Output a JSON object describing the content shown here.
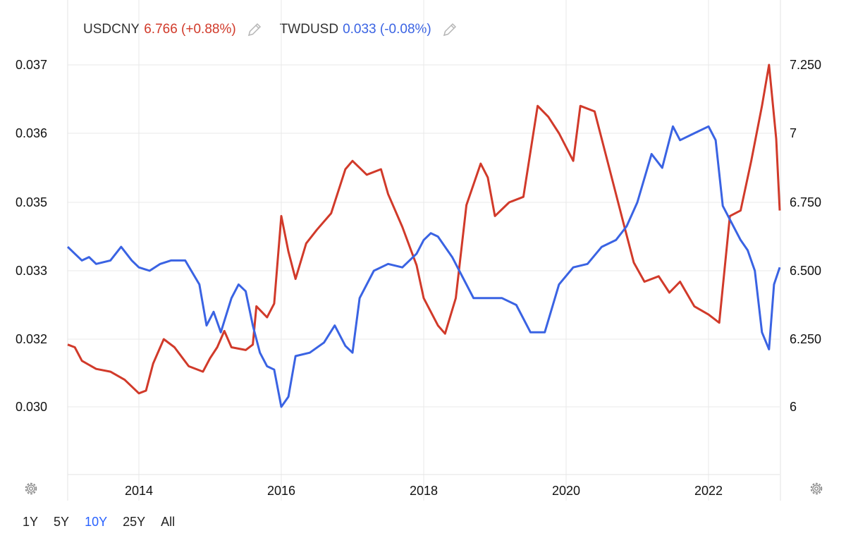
{
  "legend": [
    {
      "symbol": "USDCNY",
      "value": "6.766 (+0.88%)",
      "color": "#d13a2a"
    },
    {
      "symbol": "TWDUSD",
      "value": "0.033 (-0.08%)",
      "color": "#3a63e3"
    }
  ],
  "range_buttons": [
    {
      "label": "1Y",
      "active": false
    },
    {
      "label": "5Y",
      "active": false
    },
    {
      "label": "10Y",
      "active": true
    },
    {
      "label": "25Y",
      "active": false
    },
    {
      "label": "All",
      "active": false
    }
  ],
  "icons": {
    "edit": "pencil-icon",
    "settings": "gear-icon"
  },
  "chart_data": {
    "type": "line",
    "x_range": [
      2013.0,
      2023.0
    ],
    "x_ticks": [
      "2014",
      "2016",
      "2018",
      "2020",
      "2022"
    ],
    "left_axis": {
      "ticks": [
        "0.030",
        "0.032",
        "0.033",
        "0.035",
        "0.036",
        "0.037"
      ],
      "tick_values": [
        0.03,
        0.032,
        0.033,
        0.035,
        0.036,
        0.037
      ]
    },
    "right_axis": {
      "ticks": [
        "6",
        "6.250",
        "6.500",
        "6.750",
        "7",
        "7.250"
      ],
      "tick_values": [
        6.0,
        6.25,
        6.5,
        6.75,
        7.0,
        7.25
      ]
    },
    "grid": true,
    "series": [
      {
        "name": "USDCNY",
        "axis": "right",
        "color": "#d13a2a",
        "points": [
          [
            2013.0,
            6.23
          ],
          [
            2013.1,
            6.22
          ],
          [
            2013.2,
            6.17
          ],
          [
            2013.4,
            6.14
          ],
          [
            2013.6,
            6.13
          ],
          [
            2013.8,
            6.1
          ],
          [
            2014.0,
            6.05
          ],
          [
            2014.1,
            6.06
          ],
          [
            2014.2,
            6.16
          ],
          [
            2014.35,
            6.25
          ],
          [
            2014.5,
            6.22
          ],
          [
            2014.7,
            6.15
          ],
          [
            2014.9,
            6.13
          ],
          [
            2015.0,
            6.18
          ],
          [
            2015.1,
            6.22
          ],
          [
            2015.2,
            6.28
          ],
          [
            2015.3,
            6.22
          ],
          [
            2015.5,
            6.21
          ],
          [
            2015.6,
            6.23
          ],
          [
            2015.65,
            6.37
          ],
          [
            2015.8,
            6.33
          ],
          [
            2015.9,
            6.38
          ],
          [
            2016.0,
            6.7
          ],
          [
            2016.1,
            6.57
          ],
          [
            2016.2,
            6.47
          ],
          [
            2016.35,
            6.6
          ],
          [
            2016.5,
            6.65
          ],
          [
            2016.7,
            6.71
          ],
          [
            2016.9,
            6.87
          ],
          [
            2017.0,
            6.9
          ],
          [
            2017.2,
            6.85
          ],
          [
            2017.4,
            6.87
          ],
          [
            2017.5,
            6.78
          ],
          [
            2017.7,
            6.66
          ],
          [
            2017.9,
            6.52
          ],
          [
            2018.0,
            6.4
          ],
          [
            2018.2,
            6.3
          ],
          [
            2018.3,
            6.27
          ],
          [
            2018.45,
            6.4
          ],
          [
            2018.6,
            6.74
          ],
          [
            2018.8,
            6.89
          ],
          [
            2018.9,
            6.84
          ],
          [
            2019.0,
            6.7
          ],
          [
            2019.2,
            6.75
          ],
          [
            2019.4,
            6.77
          ],
          [
            2019.6,
            7.1
          ],
          [
            2019.75,
            7.06
          ],
          [
            2019.9,
            7.0
          ],
          [
            2020.1,
            6.9
          ],
          [
            2020.2,
            7.1
          ],
          [
            2020.4,
            7.08
          ],
          [
            2020.6,
            6.88
          ],
          [
            2020.8,
            6.68
          ],
          [
            2020.95,
            6.53
          ],
          [
            2021.1,
            6.46
          ],
          [
            2021.3,
            6.48
          ],
          [
            2021.45,
            6.42
          ],
          [
            2021.6,
            6.46
          ],
          [
            2021.8,
            6.37
          ],
          [
            2022.0,
            6.34
          ],
          [
            2022.15,
            6.31
          ],
          [
            2022.3,
            6.7
          ],
          [
            2022.45,
            6.72
          ],
          [
            2022.6,
            6.9
          ],
          [
            2022.75,
            7.1
          ],
          [
            2022.85,
            7.25
          ],
          [
            2022.95,
            6.98
          ],
          [
            2023.0,
            6.72
          ]
        ]
      },
      {
        "name": "TWDUSD",
        "axis": "left",
        "color": "#3a63e3",
        "points": [
          [
            2013.0,
            0.0337
          ],
          [
            2013.1,
            0.0335
          ],
          [
            2013.2,
            0.0333
          ],
          [
            2013.3,
            0.0334
          ],
          [
            2013.4,
            0.0332
          ],
          [
            2013.6,
            0.0333
          ],
          [
            2013.75,
            0.0337
          ],
          [
            2013.9,
            0.0333
          ],
          [
            2014.0,
            0.0331
          ],
          [
            2014.15,
            0.033
          ],
          [
            2014.3,
            0.0332
          ],
          [
            2014.45,
            0.0333
          ],
          [
            2014.65,
            0.0333
          ],
          [
            2014.85,
            0.0328
          ],
          [
            2014.95,
            0.0322
          ],
          [
            2015.05,
            0.0324
          ],
          [
            2015.15,
            0.0321
          ],
          [
            2015.3,
            0.0326
          ],
          [
            2015.4,
            0.0328
          ],
          [
            2015.5,
            0.0327
          ],
          [
            2015.6,
            0.0322
          ],
          [
            2015.7,
            0.0316
          ],
          [
            2015.8,
            0.0312
          ],
          [
            2015.9,
            0.0311
          ],
          [
            2016.0,
            0.03
          ],
          [
            2016.1,
            0.0303
          ],
          [
            2016.2,
            0.0315
          ],
          [
            2016.4,
            0.0316
          ],
          [
            2016.6,
            0.0319
          ],
          [
            2016.75,
            0.0322
          ],
          [
            2016.9,
            0.0318
          ],
          [
            2017.0,
            0.0316
          ],
          [
            2017.1,
            0.0326
          ],
          [
            2017.3,
            0.033
          ],
          [
            2017.5,
            0.0332
          ],
          [
            2017.7,
            0.0331
          ],
          [
            2017.9,
            0.0335
          ],
          [
            2018.0,
            0.0339
          ],
          [
            2018.1,
            0.0341
          ],
          [
            2018.2,
            0.034
          ],
          [
            2018.4,
            0.0334
          ],
          [
            2018.5,
            0.033
          ],
          [
            2018.7,
            0.0326
          ],
          [
            2018.9,
            0.0326
          ],
          [
            2019.1,
            0.0326
          ],
          [
            2019.3,
            0.0325
          ],
          [
            2019.5,
            0.0321
          ],
          [
            2019.7,
            0.0321
          ],
          [
            2019.9,
            0.0328
          ],
          [
            2020.1,
            0.0331
          ],
          [
            2020.3,
            0.0332
          ],
          [
            2020.5,
            0.0337
          ],
          [
            2020.7,
            0.0339
          ],
          [
            2020.85,
            0.0343
          ],
          [
            2021.0,
            0.035
          ],
          [
            2021.2,
            0.0357
          ],
          [
            2021.35,
            0.0355
          ],
          [
            2021.5,
            0.0361
          ],
          [
            2021.6,
            0.0359
          ],
          [
            2021.8,
            0.036
          ],
          [
            2022.0,
            0.0361
          ],
          [
            2022.1,
            0.0359
          ],
          [
            2022.2,
            0.0349
          ],
          [
            2022.3,
            0.0345
          ],
          [
            2022.45,
            0.0339
          ],
          [
            2022.55,
            0.0336
          ],
          [
            2022.65,
            0.033
          ],
          [
            2022.75,
            0.0321
          ],
          [
            2022.85,
            0.0317
          ],
          [
            2022.92,
            0.0328
          ],
          [
            2023.0,
            0.0331
          ]
        ]
      }
    ]
  }
}
